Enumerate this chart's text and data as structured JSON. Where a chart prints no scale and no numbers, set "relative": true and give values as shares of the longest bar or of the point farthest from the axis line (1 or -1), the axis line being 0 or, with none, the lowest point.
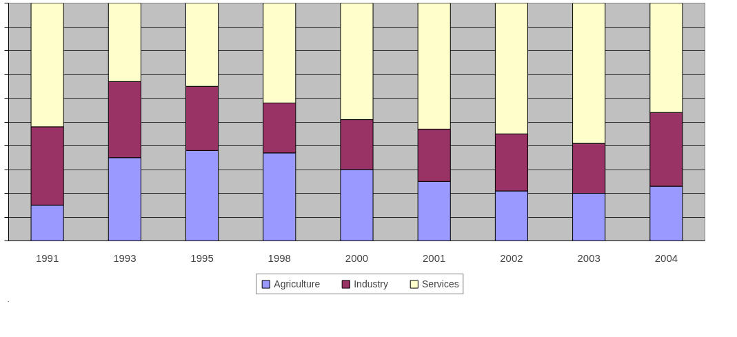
{
  "chart_data": {
    "type": "bar",
    "stacked": true,
    "relative": true,
    "grid": "y",
    "legend": "bottom",
    "categories": [
      "1991",
      "1993",
      "1995",
      "1998",
      "2000",
      "2001",
      "2002",
      "2003",
      "2004"
    ],
    "series": [
      {
        "name": "Agriculture",
        "color": "#9999ff",
        "values": [
          0.15,
          0.35,
          0.38,
          0.37,
          0.3,
          0.25,
          0.21,
          0.2,
          0.23
        ]
      },
      {
        "name": "Industry",
        "color": "#993366",
        "values": [
          0.33,
          0.32,
          0.27,
          0.21,
          0.21,
          0.22,
          0.24,
          0.21,
          0.31
        ]
      },
      {
        "name": "Services",
        "color": "#ffffcc",
        "values": [
          0.52,
          0.33,
          0.35,
          0.42,
          0.49,
          0.53,
          0.55,
          0.59,
          0.46
        ]
      }
    ]
  }
}
